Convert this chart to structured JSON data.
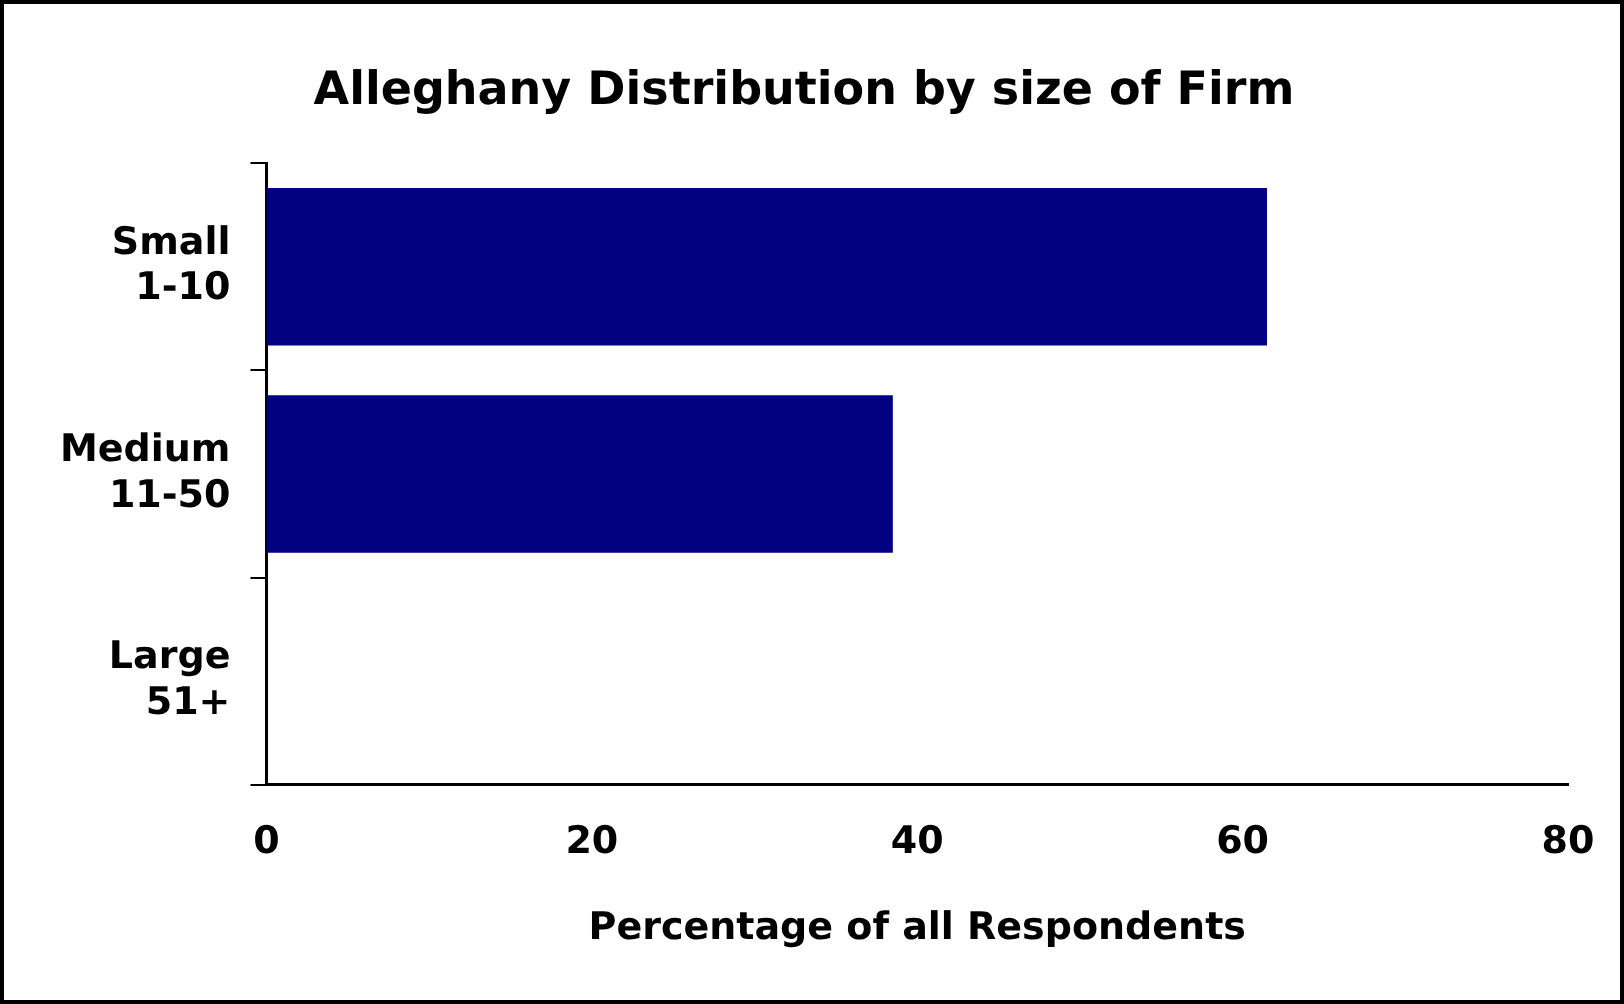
{
  "chart_data": {
    "type": "bar",
    "orientation": "horizontal",
    "title": "Alleghany Distribution by size of Firm",
    "xlabel": "Percentage of all Respondents",
    "categories": [
      "Small 1-10",
      "Medium 11-50",
      "Large 51+"
    ],
    "values": [
      61.5,
      38.5,
      0
    ],
    "color": "#000080",
    "xlim": [
      0,
      80
    ],
    "xticks": [
      0,
      20,
      40,
      60,
      80
    ],
    "grid": false,
    "legend": false
  }
}
